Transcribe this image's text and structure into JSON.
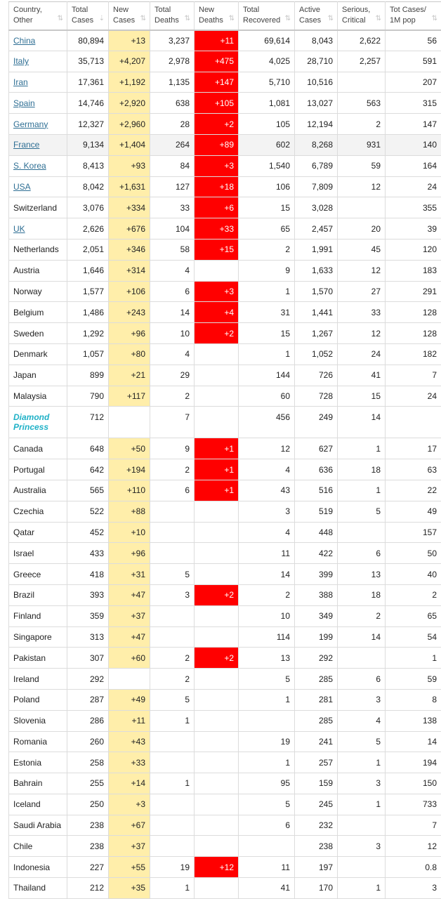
{
  "headers": [
    {
      "line1": "Country,",
      "line2": "Other"
    },
    {
      "line1": "Total",
      "line2": "Cases"
    },
    {
      "line1": "New",
      "line2": "Cases"
    },
    {
      "line1": "Total",
      "line2": "Deaths"
    },
    {
      "line1": "New",
      "line2": "Deaths"
    },
    {
      "line1": "Total",
      "line2": "Recovered"
    },
    {
      "line1": "Active",
      "line2": "Cases"
    },
    {
      "line1": "Serious,",
      "line2": "Critical"
    },
    {
      "line1": "Tot Cases/",
      "line2": "1M pop"
    }
  ],
  "sort_icon": "sort-icon",
  "colors": {
    "new_cases": "#ffeeaa",
    "new_deaths": "#ff0000",
    "link": "#2f6f94",
    "special": "#1fb1c7"
  },
  "linked": [
    "China",
    "Italy",
    "Iran",
    "Spain",
    "Germany",
    "France",
    "S. Korea",
    "USA",
    "UK"
  ],
  "special": [
    "Diamond Princess"
  ],
  "highlighted": [
    "France"
  ],
  "rows": [
    [
      "China",
      "80,894",
      "+13",
      "3,237",
      "+11",
      "69,614",
      "8,043",
      "2,622",
      "56"
    ],
    [
      "Italy",
      "35,713",
      "+4,207",
      "2,978",
      "+475",
      "4,025",
      "28,710",
      "2,257",
      "591"
    ],
    [
      "Iran",
      "17,361",
      "+1,192",
      "1,135",
      "+147",
      "5,710",
      "10,516",
      "",
      "207"
    ],
    [
      "Spain",
      "14,746",
      "+2,920",
      "638",
      "+105",
      "1,081",
      "13,027",
      "563",
      "315"
    ],
    [
      "Germany",
      "12,327",
      "+2,960",
      "28",
      "+2",
      "105",
      "12,194",
      "2",
      "147"
    ],
    [
      "France",
      "9,134",
      "+1,404",
      "264",
      "+89",
      "602",
      "8,268",
      "931",
      "140"
    ],
    [
      "S. Korea",
      "8,413",
      "+93",
      "84",
      "+3",
      "1,540",
      "6,789",
      "59",
      "164"
    ],
    [
      "USA",
      "8,042",
      "+1,631",
      "127",
      "+18",
      "106",
      "7,809",
      "12",
      "24"
    ],
    [
      "Switzerland",
      "3,076",
      "+334",
      "33",
      "+6",
      "15",
      "3,028",
      "",
      "355"
    ],
    [
      "UK",
      "2,626",
      "+676",
      "104",
      "+33",
      "65",
      "2,457",
      "20",
      "39"
    ],
    [
      "Netherlands",
      "2,051",
      "+346",
      "58",
      "+15",
      "2",
      "1,991",
      "45",
      "120"
    ],
    [
      "Austria",
      "1,646",
      "+314",
      "4",
      "",
      "9",
      "1,633",
      "12",
      "183"
    ],
    [
      "Norway",
      "1,577",
      "+106",
      "6",
      "+3",
      "1",
      "1,570",
      "27",
      "291"
    ],
    [
      "Belgium",
      "1,486",
      "+243",
      "14",
      "+4",
      "31",
      "1,441",
      "33",
      "128"
    ],
    [
      "Sweden",
      "1,292",
      "+96",
      "10",
      "+2",
      "15",
      "1,267",
      "12",
      "128"
    ],
    [
      "Denmark",
      "1,057",
      "+80",
      "4",
      "",
      "1",
      "1,052",
      "24",
      "182"
    ],
    [
      "Japan",
      "899",
      "+21",
      "29",
      "",
      "144",
      "726",
      "41",
      "7"
    ],
    [
      "Malaysia",
      "790",
      "+117",
      "2",
      "",
      "60",
      "728",
      "15",
      "24"
    ],
    [
      "Diamond Princess",
      "712",
      "",
      "7",
      "",
      "456",
      "249",
      "14",
      ""
    ],
    [
      "Canada",
      "648",
      "+50",
      "9",
      "+1",
      "12",
      "627",
      "1",
      "17"
    ],
    [
      "Portugal",
      "642",
      "+194",
      "2",
      "+1",
      "4",
      "636",
      "18",
      "63"
    ],
    [
      "Australia",
      "565",
      "+110",
      "6",
      "+1",
      "43",
      "516",
      "1",
      "22"
    ],
    [
      "Czechia",
      "522",
      "+88",
      "",
      "",
      "3",
      "519",
      "5",
      "49"
    ],
    [
      "Qatar",
      "452",
      "+10",
      "",
      "",
      "4",
      "448",
      "",
      "157"
    ],
    [
      "Israel",
      "433",
      "+96",
      "",
      "",
      "11",
      "422",
      "6",
      "50"
    ],
    [
      "Greece",
      "418",
      "+31",
      "5",
      "",
      "14",
      "399",
      "13",
      "40"
    ],
    [
      "Brazil",
      "393",
      "+47",
      "3",
      "+2",
      "2",
      "388",
      "18",
      "2"
    ],
    [
      "Finland",
      "359",
      "+37",
      "",
      "",
      "10",
      "349",
      "2",
      "65"
    ],
    [
      "Singapore",
      "313",
      "+47",
      "",
      "",
      "114",
      "199",
      "14",
      "54"
    ],
    [
      "Pakistan",
      "307",
      "+60",
      "2",
      "+2",
      "13",
      "292",
      "",
      "1"
    ],
    [
      "Ireland",
      "292",
      "",
      "2",
      "",
      "5",
      "285",
      "6",
      "59"
    ],
    [
      "Poland",
      "287",
      "+49",
      "5",
      "",
      "1",
      "281",
      "3",
      "8"
    ],
    [
      "Slovenia",
      "286",
      "+11",
      "1",
      "",
      "",
      "285",
      "4",
      "138"
    ],
    [
      "Romania",
      "260",
      "+43",
      "",
      "",
      "19",
      "241",
      "5",
      "14"
    ],
    [
      "Estonia",
      "258",
      "+33",
      "",
      "",
      "1",
      "257",
      "1",
      "194"
    ],
    [
      "Bahrain",
      "255",
      "+14",
      "1",
      "",
      "95",
      "159",
      "3",
      "150"
    ],
    [
      "Iceland",
      "250",
      "+3",
      "",
      "",
      "5",
      "245",
      "1",
      "733"
    ],
    [
      "Saudi Arabia",
      "238",
      "+67",
      "",
      "",
      "6",
      "232",
      "",
      "7"
    ],
    [
      "Chile",
      "238",
      "+37",
      "",
      "",
      "",
      "238",
      "3",
      "12"
    ],
    [
      "Indonesia",
      "227",
      "+55",
      "19",
      "+12",
      "11",
      "197",
      "",
      "0.8"
    ],
    [
      "Thailand",
      "212",
      "+35",
      "1",
      "",
      "41",
      "170",
      "1",
      "3"
    ]
  ]
}
